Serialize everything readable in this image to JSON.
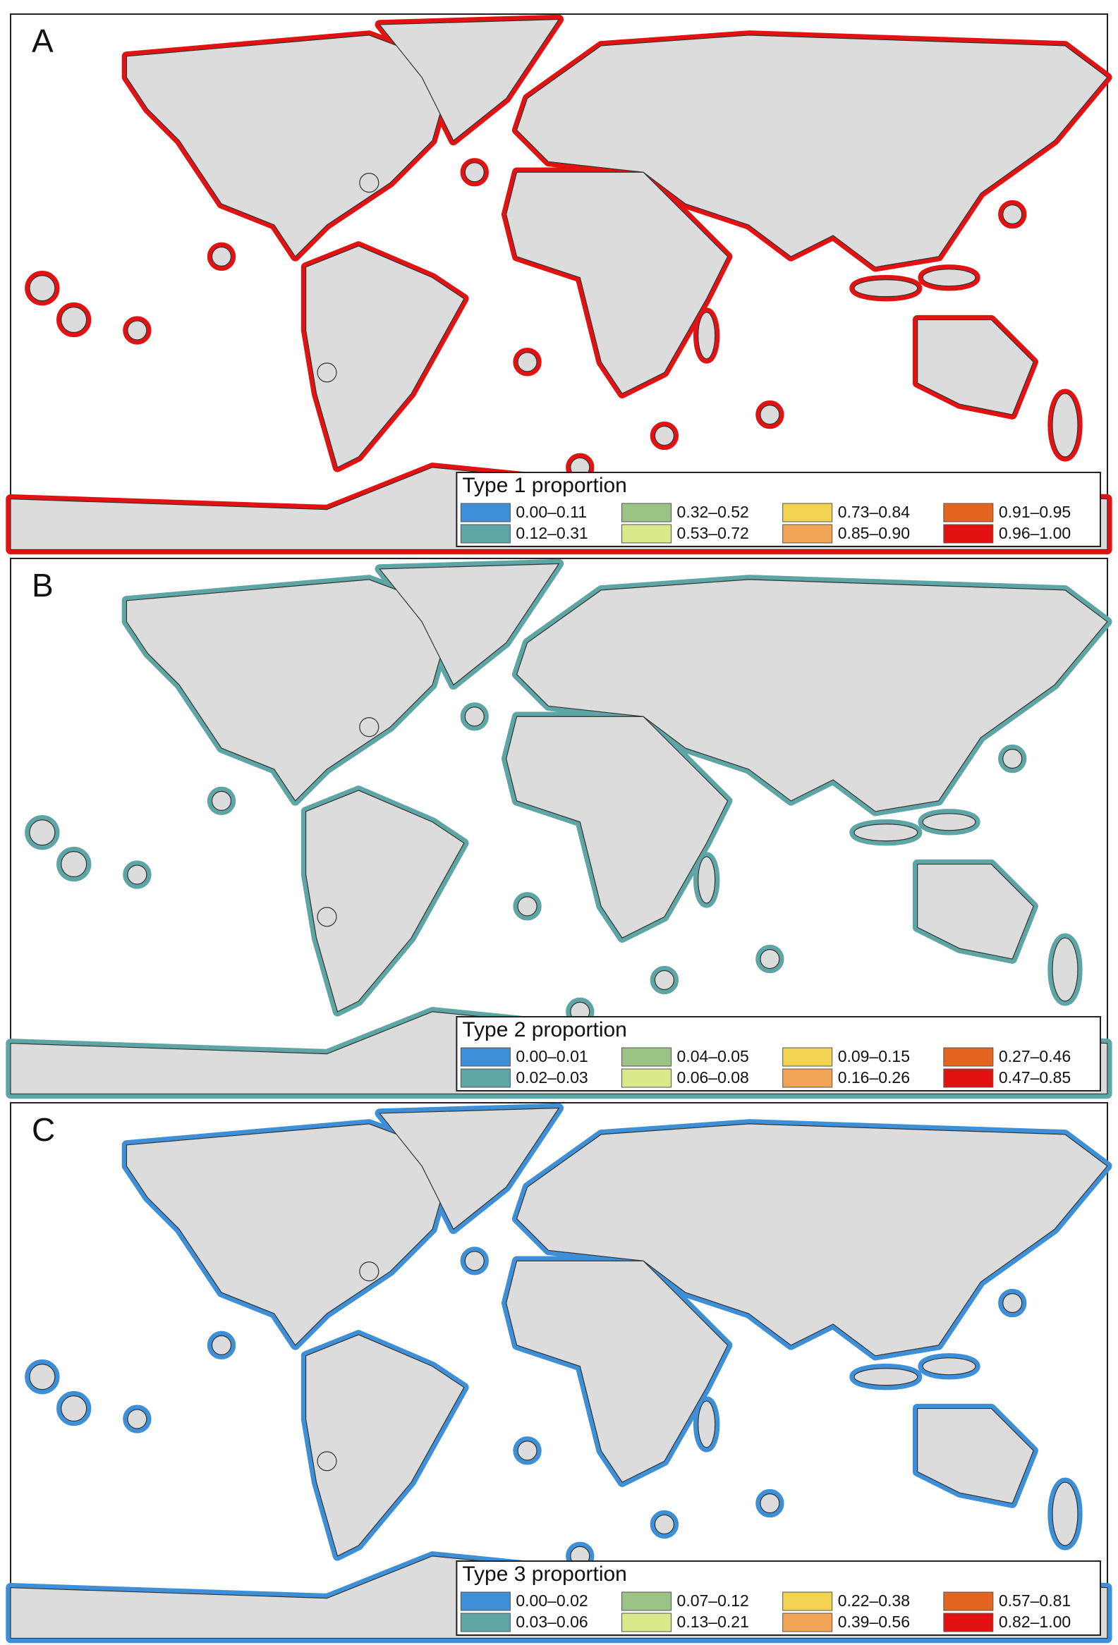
{
  "panels": [
    {
      "label": "A",
      "legend": {
        "title": "Type 1 proportion",
        "entries": [
          {
            "label": "0.00–0.11",
            "color": "#3d8fd8"
          },
          {
            "label": "0.12–0.31",
            "color": "#5ea6a6"
          },
          {
            "label": "0.32–0.52",
            "color": "#9cc386"
          },
          {
            "label": "0.53–0.72",
            "color": "#d9ea8c"
          },
          {
            "label": "0.73–0.84",
            "color": "#f2d352"
          },
          {
            "label": "0.85–0.90",
            "color": "#f2a456"
          },
          {
            "label": "0.91–0.95",
            "color": "#e2641e"
          },
          {
            "label": "0.96–1.00",
            "color": "#e21212"
          }
        ]
      }
    },
    {
      "label": "B",
      "legend": {
        "title": "Type 2 proportion",
        "entries": [
          {
            "label": "0.00–0.01",
            "color": "#3d8fd8"
          },
          {
            "label": "0.02–0.03",
            "color": "#5ea6a6"
          },
          {
            "label": "0.04–0.05",
            "color": "#9cc386"
          },
          {
            "label": "0.06–0.08",
            "color": "#d9ea8c"
          },
          {
            "label": "0.09–0.15",
            "color": "#f2d352"
          },
          {
            "label": "0.16–0.26",
            "color": "#f2a456"
          },
          {
            "label": "0.27–0.46",
            "color": "#e2641e"
          },
          {
            "label": "0.47–0.85",
            "color": "#e21212"
          }
        ]
      }
    },
    {
      "label": "C",
      "legend": {
        "title": "Type 3 proportion",
        "entries": [
          {
            "label": "0.00–0.02",
            "color": "#3d8fd8"
          },
          {
            "label": "0.03–0.06",
            "color": "#5ea6a6"
          },
          {
            "label": "0.07–0.12",
            "color": "#9cc386"
          },
          {
            "label": "0.13–0.21",
            "color": "#d9ea8c"
          },
          {
            "label": "0.22–0.38",
            "color": "#f2d352"
          },
          {
            "label": "0.39–0.56",
            "color": "#f2a456"
          },
          {
            "label": "0.57–0.81",
            "color": "#e2641e"
          },
          {
            "label": "0.82–1.00",
            "color": "#e21212"
          }
        ]
      }
    }
  ]
}
